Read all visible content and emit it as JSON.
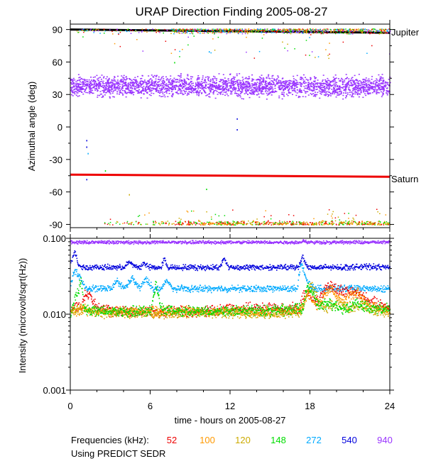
{
  "title": "URAP Direction Finding  2005-08-27",
  "footer": {
    "frequencies_label": "Frequencies (kHz):",
    "using_label": "Using PREDICT SEDR"
  },
  "colors": {
    "52": "#ee0000",
    "100": "#ff9900",
    "120": "#ccaa00",
    "148": "#00dd00",
    "272": "#00aaff",
    "540": "#0000dd",
    "940": "#9933ff",
    "planet_line_jupiter": "#000000",
    "planet_line_saturn": "#ee0000"
  },
  "chart_data": [
    {
      "type": "scatter",
      "panel": "top",
      "ylabel": "Azimuthal angle (deg)",
      "xlim": [
        0,
        24
      ],
      "ylim": [
        -93,
        95
      ],
      "y_ticks": [
        90,
        60,
        30,
        0,
        -30,
        -60,
        -90
      ],
      "y_tick_labels": [
        "90",
        "60",
        "30",
        "0",
        "-30",
        "-60",
        "-90"
      ],
      "annotations": [
        {
          "text": "Jupiter",
          "x": 24,
          "y": 87
        },
        {
          "text": "Saturn",
          "x": 24,
          "y": -46
        }
      ],
      "reference_lines": [
        {
          "name": "Jupiter",
          "x": [
            0,
            24
          ],
          "y": [
            90,
            87
          ]
        },
        {
          "name": "Saturn",
          "x": [
            0,
            24
          ],
          "y": [
            -44,
            -46
          ]
        }
      ],
      "series": [
        {
          "freq": "940",
          "description_points": [
            [
              0,
              38
            ],
            [
              2,
              36
            ],
            [
              4,
              39
            ],
            [
              6,
              37
            ],
            [
              8,
              38
            ],
            [
              10,
              37
            ],
            [
              12,
              39
            ],
            [
              14,
              38
            ],
            [
              16,
              37
            ],
            [
              18,
              39
            ],
            [
              20,
              38
            ],
            [
              22,
              37
            ],
            [
              24,
              38
            ]
          ],
          "spread": 7
        },
        {
          "freq": "148",
          "description_points": [
            [
              1,
              90
            ],
            [
              8,
              91
            ],
            [
              12,
              90
            ],
            [
              16,
              92
            ],
            [
              18,
              90
            ],
            [
              22,
              91
            ]
          ],
          "spread": 3
        },
        {
          "freq": "52",
          "description_points": [
            [
              8,
              -90
            ],
            [
              12,
              -91
            ],
            [
              16,
              -90
            ],
            [
              20,
              -91
            ]
          ],
          "spread": 2
        }
      ]
    },
    {
      "type": "line",
      "panel": "bottom",
      "ylabel": "Intensity (microvolt/sqrt(Hz))",
      "xlabel": "time - hours on 2005-08-27",
      "xlim": [
        0,
        24
      ],
      "x_ticks": [
        0,
        6,
        12,
        18,
        24
      ],
      "x_tick_labels": [
        "0",
        "6",
        "12",
        "18",
        "24"
      ],
      "ylim": [
        0.001,
        0.1
      ],
      "yscale": "log",
      "y_ticks": [
        0.1,
        0.01,
        0.001
      ],
      "y_tick_labels": [
        "0.100",
        "0.010",
        "0.001"
      ],
      "legend": {
        "placement": "bottom",
        "title": "Frequencies (kHz):",
        "entries": [
          "52",
          "100",
          "120",
          "148",
          "272",
          "540",
          "940"
        ]
      },
      "series": [
        {
          "name": "940",
          "x": [
            0,
            6,
            12,
            17.3,
            17.5,
            17.8,
            24
          ],
          "y": [
            0.09,
            0.09,
            0.09,
            0.09,
            0.095,
            0.09,
            0.09
          ]
        },
        {
          "name": "540",
          "x": [
            0,
            0.3,
            0.6,
            1.0,
            2,
            4,
            4.4,
            4.8,
            5.2,
            5.5,
            5.9,
            6.8,
            7.0,
            7.3,
            9,
            11.2,
            11.5,
            11.9,
            14,
            17.1,
            17.4,
            17.8,
            20,
            22,
            24
          ],
          "y": [
            0.05,
            0.068,
            0.045,
            0.042,
            0.042,
            0.042,
            0.05,
            0.043,
            0.042,
            0.048,
            0.042,
            0.042,
            0.055,
            0.042,
            0.042,
            0.042,
            0.055,
            0.042,
            0.042,
            0.042,
            0.06,
            0.042,
            0.042,
            0.043,
            0.042
          ]
        },
        {
          "name": "272",
          "x": [
            0,
            0.3,
            0.7,
            1.2,
            2,
            3.0,
            3.5,
            4.0,
            4.6,
            5.2,
            5.6,
            6.2,
            6.8,
            7.2,
            7.7,
            9,
            12,
            15,
            17.0,
            17.3,
            17.8,
            18.5,
            20,
            22,
            24
          ],
          "y": [
            0.025,
            0.04,
            0.03,
            0.022,
            0.022,
            0.022,
            0.028,
            0.022,
            0.03,
            0.022,
            0.03,
            0.022,
            0.022,
            0.028,
            0.022,
            0.022,
            0.022,
            0.022,
            0.022,
            0.05,
            0.025,
            0.022,
            0.022,
            0.022,
            0.022
          ]
        },
        {
          "name": "52",
          "x": [
            0,
            0.8,
            1.2,
            2,
            3,
            5,
            8,
            10,
            12,
            14,
            16,
            17.2,
            17.6,
            18.5,
            19.5,
            20.5,
            21.5,
            22.5,
            24
          ],
          "y": [
            0.012,
            0.013,
            0.02,
            0.013,
            0.011,
            0.011,
            0.011,
            0.011,
            0.012,
            0.012,
            0.012,
            0.012,
            0.02,
            0.015,
            0.025,
            0.02,
            0.02,
            0.015,
            0.012
          ]
        },
        {
          "name": "100",
          "x": [
            0,
            1,
            2,
            4,
            6,
            8,
            10,
            12,
            14,
            16,
            17.3,
            17.8,
            18.5,
            19.5,
            20.5,
            21.5,
            22.5,
            24
          ],
          "y": [
            0.011,
            0.012,
            0.011,
            0.011,
            0.011,
            0.011,
            0.011,
            0.011,
            0.011,
            0.011,
            0.012,
            0.02,
            0.013,
            0.022,
            0.015,
            0.02,
            0.013,
            0.011
          ]
        },
        {
          "name": "120",
          "x": [
            0,
            1,
            2,
            4,
            6,
            8,
            10,
            12,
            14,
            16,
            17.3,
            18.0,
            19,
            20,
            21,
            22,
            23,
            24
          ],
          "y": [
            0.011,
            0.012,
            0.0105,
            0.0105,
            0.0105,
            0.0105,
            0.0105,
            0.0105,
            0.0105,
            0.0105,
            0.011,
            0.025,
            0.012,
            0.014,
            0.012,
            0.013,
            0.011,
            0.0105
          ]
        },
        {
          "name": "148",
          "x": [
            0,
            0.8,
            1.0,
            2,
            4,
            6,
            6.4,
            6.8,
            8,
            10,
            12,
            14,
            16,
            17.4,
            17.8,
            18.6,
            19.5,
            20.5,
            21.5,
            22.5,
            24
          ],
          "y": [
            0.011,
            0.028,
            0.012,
            0.011,
            0.011,
            0.011,
            0.026,
            0.012,
            0.011,
            0.011,
            0.0115,
            0.0115,
            0.0115,
            0.012,
            0.025,
            0.013,
            0.014,
            0.012,
            0.014,
            0.012,
            0.012
          ]
        }
      ]
    }
  ]
}
